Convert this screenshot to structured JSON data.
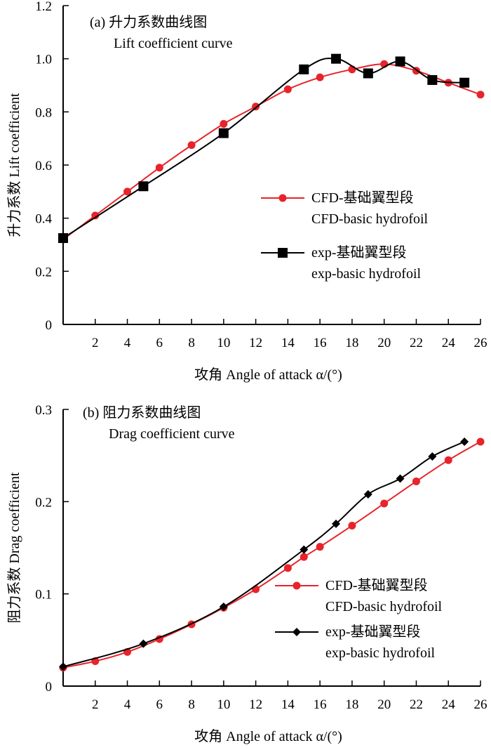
{
  "chart_data": [
    {
      "type": "line",
      "title": "(a) 升力系数曲线图",
      "subtitle": "Lift coefficient curve",
      "xlabel": "攻角 Angle of attack α/(°)",
      "ylabel": "升力系数 Lift coefficient",
      "xlim": [
        0,
        26
      ],
      "ylim": [
        0,
        1.2
      ],
      "xticks": [
        "2",
        "4",
        "6",
        "8",
        "10",
        "12",
        "14",
        "16",
        "18",
        "20",
        "22",
        "24",
        "26"
      ],
      "yticks": [
        "0",
        "0.2",
        "0.4",
        "0.6",
        "0.8",
        "1.0",
        "1.2"
      ],
      "legend_position": "right-middle",
      "grid": false,
      "series": [
        {
          "name": "CFD-基础翼型段",
          "name2": "CFD-basic hydrofoil",
          "color": "#e8232a",
          "marker": "circle",
          "x": [
            0,
            2,
            4,
            6,
            8,
            10,
            12,
            14,
            16,
            18,
            20,
            22,
            24,
            26
          ],
          "y": [
            0.32,
            0.41,
            0.5,
            0.59,
            0.675,
            0.755,
            0.82,
            0.885,
            0.93,
            0.96,
            0.98,
            0.955,
            0.91,
            0.865
          ]
        },
        {
          "name": "exp-基础翼型段",
          "name2": "exp-basic hydrofoil",
          "color": "#000000",
          "marker": "square",
          "x": [
            0,
            5,
            10,
            15,
            17,
            19,
            21,
            23,
            25
          ],
          "y": [
            0.325,
            0.52,
            0.72,
            0.96,
            1.0,
            0.945,
            0.99,
            0.92,
            0.91
          ]
        }
      ]
    },
    {
      "type": "line",
      "title": "(b) 阻力系数曲线图",
      "subtitle": "Drag coefficient curve",
      "xlabel": "攻角 Angle of attack α/(°)",
      "ylabel": "阻力系数 Drag coefficient",
      "xlim": [
        0,
        26
      ],
      "ylim": [
        0,
        0.3
      ],
      "xticks": [
        "2",
        "4",
        "6",
        "8",
        "10",
        "12",
        "14",
        "16",
        "18",
        "20",
        "22",
        "24",
        "26"
      ],
      "yticks": [
        "0",
        "0.1",
        "0.2",
        "0.3"
      ],
      "legend_position": "right-middle",
      "grid": false,
      "series": [
        {
          "name": "CFD-基础翼型段",
          "name2": "CFD-basic hydrofoil",
          "color": "#e8232a",
          "marker": "circle",
          "x": [
            0,
            2,
            4,
            6,
            8,
            10,
            12,
            14,
            15,
            16,
            18,
            20,
            22,
            24,
            26
          ],
          "y": [
            0.02,
            0.027,
            0.037,
            0.051,
            0.067,
            0.085,
            0.105,
            0.128,
            0.14,
            0.151,
            0.174,
            0.198,
            0.222,
            0.245,
            0.265
          ]
        },
        {
          "name": "exp-基础翼型段",
          "name2": "exp-basic hydrofoil",
          "color": "#000000",
          "marker": "diamond",
          "x": [
            0,
            5,
            10,
            15,
            17,
            19,
            21,
            23,
            25
          ],
          "y": [
            0.021,
            0.046,
            0.086,
            0.148,
            0.176,
            0.208,
            0.225,
            0.249,
            0.265
          ]
        }
      ]
    }
  ]
}
